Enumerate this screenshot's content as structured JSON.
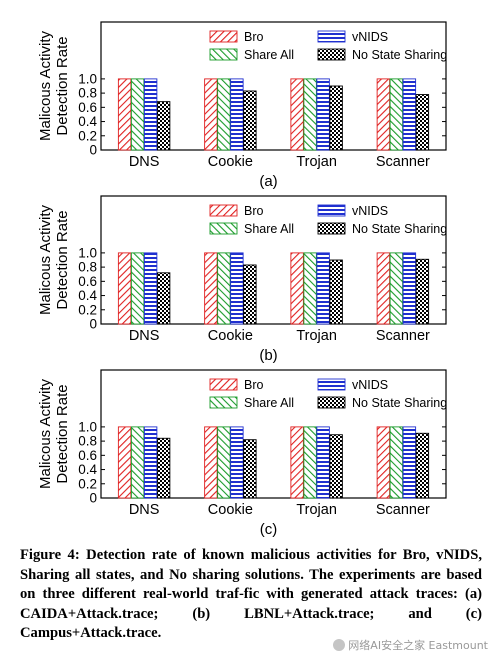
{
  "legend_entries": [
    "Bro",
    "Share All",
    "vNIDS",
    "No State Sharing"
  ],
  "colors": {
    "bro": "#e02020",
    "share_all": "#1a9b2a",
    "vnids": "#2030d0",
    "no_state": "#000000"
  },
  "chart_data": [
    {
      "type": "bar",
      "panel_label": "(a)",
      "ylabel": "Malicous Activity\nDetection Rate",
      "ylim": [
        0,
        1.8
      ],
      "yticks": [
        "0",
        "0.2",
        "0.4",
        "0.6",
        "0.8",
        "1.0"
      ],
      "categories": [
        "DNS",
        "Cookie",
        "Trojan",
        "Scanner"
      ],
      "legend_placement": "top-right",
      "series": [
        {
          "name": "Bro",
          "values": [
            1.0,
            1.0,
            1.0,
            1.0
          ]
        },
        {
          "name": "Share All",
          "values": [
            1.0,
            1.0,
            1.0,
            1.0
          ]
        },
        {
          "name": "vNIDS",
          "values": [
            1.0,
            1.0,
            1.0,
            1.0
          ]
        },
        {
          "name": "No State Sharing",
          "values": [
            0.68,
            0.83,
            0.9,
            0.78
          ]
        }
      ]
    },
    {
      "type": "bar",
      "panel_label": "(b)",
      "ylabel": "Malicous Activity\nDetection Rate",
      "ylim": [
        0,
        1.8
      ],
      "yticks": [
        "0",
        "0.2",
        "0.4",
        "0.6",
        "0.8",
        "1.0"
      ],
      "categories": [
        "DNS",
        "Cookie",
        "Trojan",
        "Scanner"
      ],
      "legend_placement": "top-right",
      "series": [
        {
          "name": "Bro",
          "values": [
            1.0,
            1.0,
            1.0,
            1.0
          ]
        },
        {
          "name": "Share All",
          "values": [
            1.0,
            1.0,
            1.0,
            1.0
          ]
        },
        {
          "name": "vNIDS",
          "values": [
            1.0,
            1.0,
            1.0,
            1.0
          ]
        },
        {
          "name": "No State Sharing",
          "values": [
            0.72,
            0.83,
            0.9,
            0.91
          ]
        }
      ]
    },
    {
      "type": "bar",
      "panel_label": "(c)",
      "ylabel": "Malicous Activity\nDetection Rate",
      "ylim": [
        0,
        1.8
      ],
      "yticks": [
        "0",
        "0.2",
        "0.4",
        "0.6",
        "0.8",
        "1.0"
      ],
      "categories": [
        "DNS",
        "Cookie",
        "Trojan",
        "Scanner"
      ],
      "legend_placement": "top-right",
      "series": [
        {
          "name": "Bro",
          "values": [
            1.0,
            1.0,
            1.0,
            1.0
          ]
        },
        {
          "name": "Share All",
          "values": [
            1.0,
            1.0,
            1.0,
            1.0
          ]
        },
        {
          "name": "vNIDS",
          "values": [
            1.0,
            1.0,
            1.0,
            1.0
          ]
        },
        {
          "name": "No State Sharing",
          "values": [
            0.84,
            0.82,
            0.89,
            0.91
          ]
        }
      ]
    }
  ],
  "caption": "Figure 4: Detection rate of known malicious activities for Bro, vNIDS, Sharing all states, and No sharing solutions. The experiments are based on three different real-world traf-fic with generated attack traces: (a) CAIDA+Attack.trace; (b) LBNL+Attack.trace; and (c) Campus+Attack.trace.",
  "watermark": "网络AI安全之家 Eastmount"
}
